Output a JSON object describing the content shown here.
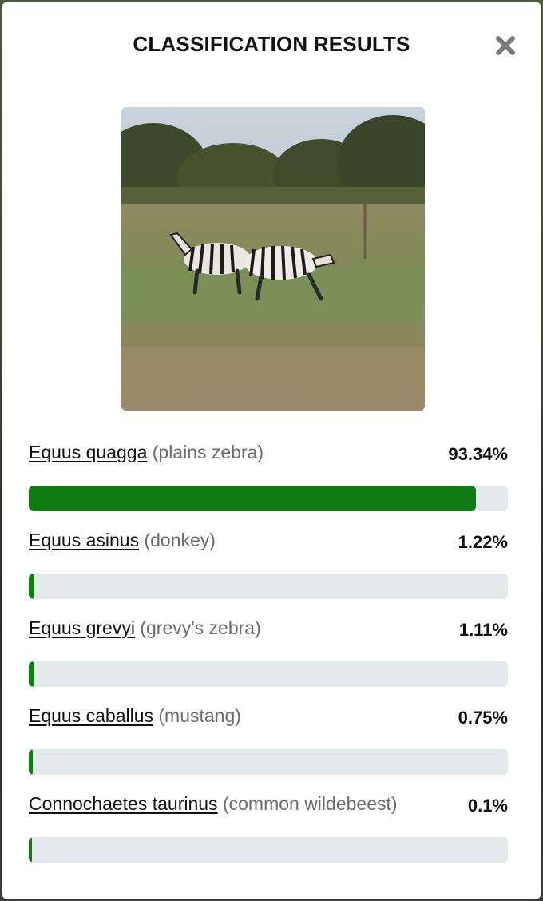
{
  "dialog": {
    "title": "CLASSIFICATION RESULTS",
    "close_icon": "close-icon"
  },
  "image": {
    "subject": "zebra-photo"
  },
  "colors": {
    "bar_fill": "#117c13",
    "bar_track": "#e6e9ec",
    "common_name": "#6b6b6b"
  },
  "results": [
    {
      "scientific": "Equus quagga",
      "common": "(plains zebra)",
      "percent": "93.34%",
      "fraction": 0.9334
    },
    {
      "scientific": "Equus asinus",
      "common": "(donkey)",
      "percent": "1.22%",
      "fraction": 0.0122
    },
    {
      "scientific": "Equus grevyi",
      "common": "(grevy's zebra)",
      "percent": "1.11%",
      "fraction": 0.0111
    },
    {
      "scientific": "Equus caballus",
      "common": "(mustang)",
      "percent": "0.75%",
      "fraction": 0.0075
    },
    {
      "scientific": "Connochaetes taurinus",
      "common": "(common wildebeest)",
      "percent": "0.1%",
      "fraction": 0.001
    }
  ]
}
